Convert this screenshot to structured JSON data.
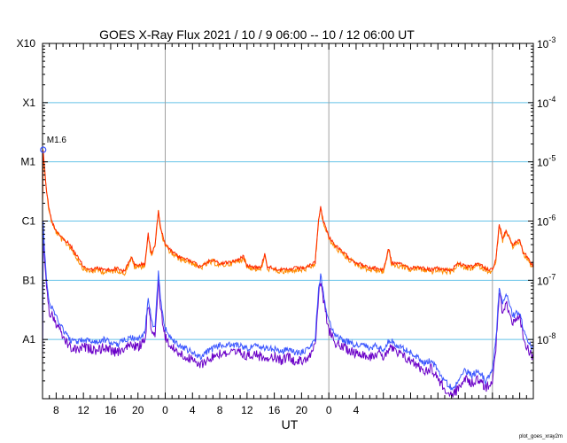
{
  "chart_data": {
    "type": "line",
    "title": "GOES X-Ray Flux   2021 / 10 /  9   06:00 -- 10 / 12   06:00   UT",
    "xlabel": "UT",
    "credit": "plot_goes_xray2m",
    "x_range_hours_ut": [
      6,
      78
    ],
    "x_ticks": [
      "8",
      "12",
      "16",
      "20",
      "0",
      "4",
      "8",
      "12",
      "16",
      "20",
      "0",
      "4"
    ],
    "y_scale": "log",
    "y_range": [
      1e-09,
      0.001
    ],
    "flare_class_labels": [
      "A1",
      "B1",
      "C1",
      "M1",
      "X1",
      "X10"
    ],
    "right_ticks": [
      {
        "base": "10",
        "exp": "-3"
      },
      {
        "base": "10",
        "exp": "-4"
      },
      {
        "base": "10",
        "exp": "-5"
      },
      {
        "base": "10",
        "exp": "-6"
      },
      {
        "base": "10",
        "exp": "-7"
      },
      {
        "base": "10",
        "exp": "-8"
      }
    ],
    "day_boundaries_hours": [
      24,
      48,
      72
    ],
    "grid": {
      "horizontal": true,
      "color": "#66c2e8"
    },
    "annotation": {
      "label": "M1.6",
      "hour": 6.1,
      "flux": 1.6e-05
    },
    "series": [
      {
        "name": "",
        "color": "#ff2a00",
        "color_secondary": "#ff8c00",
        "points": [
          [
            6.0,
            2e-06
          ],
          [
            6.1,
            1.6e-05
          ],
          [
            6.3,
            8e-06
          ],
          [
            6.6,
            3.2e-06
          ],
          [
            7.0,
            1.5e-06
          ],
          [
            7.5,
            9e-07
          ],
          [
            8.0,
            7e-07
          ],
          [
            9.0,
            5e-07
          ],
          [
            10.0,
            4e-07
          ],
          [
            11.0,
            2.6e-07
          ],
          [
            12.0,
            1.7e-07
          ],
          [
            13.0,
            1.5e-07
          ],
          [
            14.0,
            1.6e-07
          ],
          [
            15.0,
            1.5e-07
          ],
          [
            16.0,
            1.5e-07
          ],
          [
            17.0,
            1.6e-07
          ],
          [
            18.0,
            1.4e-07
          ],
          [
            19.0,
            2.5e-07
          ],
          [
            19.5,
            1.8e-07
          ],
          [
            20.0,
            1.8e-07
          ],
          [
            21.0,
            1.9e-07
          ],
          [
            21.5,
            6e-07
          ],
          [
            21.8,
            3.5e-07
          ],
          [
            22.0,
            3e-07
          ],
          [
            22.5,
            4e-07
          ],
          [
            23.0,
            1.5e-06
          ],
          [
            23.4,
            7e-07
          ],
          [
            24.0,
            4e-07
          ],
          [
            25.0,
            3e-07
          ],
          [
            26.0,
            2.5e-07
          ],
          [
            27.0,
            2.3e-07
          ],
          [
            28.0,
            2.1e-07
          ],
          [
            29.0,
            1.7e-07
          ],
          [
            30.0,
            2e-07
          ],
          [
            31.0,
            2.2e-07
          ],
          [
            32.0,
            1.9e-07
          ],
          [
            33.0,
            2e-07
          ],
          [
            34.0,
            2.1e-07
          ],
          [
            35.0,
            2.3e-07
          ],
          [
            35.5,
            2.6e-07
          ],
          [
            36.0,
            1.8e-07
          ],
          [
            37.0,
            1.7e-07
          ],
          [
            38.0,
            1.6e-07
          ],
          [
            38.6,
            2.8e-07
          ],
          [
            39.0,
            1.7e-07
          ],
          [
            40.0,
            1.6e-07
          ],
          [
            41.0,
            1.5e-07
          ],
          [
            42.0,
            1.5e-07
          ],
          [
            43.0,
            1.6e-07
          ],
          [
            44.0,
            1.6e-07
          ],
          [
            45.0,
            1.7e-07
          ],
          [
            46.0,
            2e-07
          ],
          [
            46.5,
            1.1e-06
          ],
          [
            46.8,
            1.7e-06
          ],
          [
            47.2,
            1e-06
          ],
          [
            48.0,
            5.5e-07
          ],
          [
            49.0,
            3.8e-07
          ],
          [
            50.0,
            3e-07
          ],
          [
            51.0,
            2.4e-07
          ],
          [
            52.0,
            2e-07
          ],
          [
            53.0,
            1.8e-07
          ],
          [
            54.0,
            1.6e-07
          ],
          [
            55.0,
            1.6e-07
          ],
          [
            56.0,
            1.5e-07
          ],
          [
            56.8,
            3.5e-07
          ],
          [
            57.2,
            2e-07
          ],
          [
            58.0,
            1.9e-07
          ],
          [
            59.0,
            1.8e-07
          ],
          [
            60.0,
            1.6e-07
          ],
          [
            61.0,
            1.7e-07
          ],
          [
            62.0,
            1.6e-07
          ],
          [
            63.0,
            1.5e-07
          ],
          [
            64.0,
            1.6e-07
          ],
          [
            65.0,
            1.5e-07
          ],
          [
            66.0,
            1.5e-07
          ],
          [
            67.0,
            2e-07
          ],
          [
            68.0,
            1.7e-07
          ],
          [
            69.0,
            1.7e-07
          ],
          [
            70.0,
            1.9e-07
          ],
          [
            71.0,
            1.6e-07
          ],
          [
            72.0,
            1.5e-07
          ],
          [
            72.5,
            2.2e-07
          ],
          [
            73.0,
            9e-07
          ],
          [
            73.5,
            5e-07
          ],
          [
            74.0,
            7e-07
          ],
          [
            75.0,
            4e-07
          ],
          [
            76.0,
            5e-07
          ],
          [
            76.5,
            3e-07
          ],
          [
            77.0,
            2.6e-07
          ],
          [
            77.5,
            2e-07
          ],
          [
            78.0,
            1.8e-07
          ]
        ]
      },
      {
        "name": "",
        "color": "#3a55ff",
        "color_secondary": "#6a00c8",
        "points": [
          [
            6.0,
            5e-09
          ],
          [
            6.1,
            1e-06
          ],
          [
            6.3,
            3.5e-07
          ],
          [
            6.6,
            1e-07
          ],
          [
            7.0,
            4e-08
          ],
          [
            8.0,
            2.5e-08
          ],
          [
            9.0,
            1.5e-08
          ],
          [
            10.0,
            1e-08
          ],
          [
            11.0,
            9e-09
          ],
          [
            12.0,
            1e-08
          ],
          [
            13.0,
            9.5e-09
          ],
          [
            14.0,
            9e-09
          ],
          [
            15.0,
            1e-08
          ],
          [
            16.0,
            9e-09
          ],
          [
            17.0,
            8e-09
          ],
          [
            18.0,
            1e-08
          ],
          [
            19.0,
            1.1e-08
          ],
          [
            20.0,
            1e-08
          ],
          [
            21.0,
            1.3e-08
          ],
          [
            21.5,
            5e-08
          ],
          [
            22.0,
            2e-08
          ],
          [
            22.5,
            1.5e-08
          ],
          [
            23.0,
            1.3e-07
          ],
          [
            23.4,
            4e-08
          ],
          [
            24.0,
            1.5e-08
          ],
          [
            25.0,
            1e-08
          ],
          [
            26.0,
            8e-09
          ],
          [
            27.0,
            7e-09
          ],
          [
            28.0,
            6e-09
          ],
          [
            29.0,
            5e-09
          ],
          [
            30.0,
            6e-09
          ],
          [
            31.0,
            7e-09
          ],
          [
            32.0,
            8e-09
          ],
          [
            33.0,
            8e-09
          ],
          [
            34.0,
            8e-09
          ],
          [
            35.0,
            8e-09
          ],
          [
            36.0,
            7e-09
          ],
          [
            37.0,
            8e-09
          ],
          [
            38.0,
            7e-09
          ],
          [
            39.0,
            7e-09
          ],
          [
            40.0,
            7e-09
          ],
          [
            41.0,
            6e-09
          ],
          [
            42.0,
            7e-09
          ],
          [
            43.0,
            6e-09
          ],
          [
            44.0,
            6e-09
          ],
          [
            45.0,
            7e-09
          ],
          [
            46.0,
            1e-08
          ],
          [
            46.5,
            8e-08
          ],
          [
            46.8,
            1.2e-07
          ],
          [
            47.2,
            6e-08
          ],
          [
            48.0,
            2e-08
          ],
          [
            49.0,
            1.2e-08
          ],
          [
            50.0,
            1e-08
          ],
          [
            51.0,
            9e-09
          ],
          [
            52.0,
            8e-09
          ],
          [
            53.0,
            8e-09
          ],
          [
            54.0,
            7e-09
          ],
          [
            55.0,
            8e-09
          ],
          [
            56.0,
            7e-09
          ],
          [
            57.0,
            1e-08
          ],
          [
            58.0,
            8e-09
          ],
          [
            59.0,
            7e-09
          ],
          [
            60.0,
            6e-09
          ],
          [
            61.0,
            5e-09
          ],
          [
            62.0,
            4e-09
          ],
          [
            63.0,
            4.5e-09
          ],
          [
            64.0,
            3e-09
          ],
          [
            65.0,
            2e-09
          ],
          [
            66.0,
            1.5e-09
          ],
          [
            67.0,
            2e-09
          ],
          [
            68.0,
            3e-09
          ],
          [
            69.0,
            2.5e-09
          ],
          [
            70.0,
            3e-09
          ],
          [
            71.0,
            2e-09
          ],
          [
            72.0,
            3e-09
          ],
          [
            72.5,
            1e-08
          ],
          [
            73.0,
            8e-08
          ],
          [
            73.5,
            4e-08
          ],
          [
            74.0,
            6e-08
          ],
          [
            75.0,
            2.5e-08
          ],
          [
            76.0,
            3e-08
          ],
          [
            76.5,
            1.5e-08
          ],
          [
            77.0,
            1e-08
          ],
          [
            77.5,
            8e-09
          ],
          [
            78.0,
            7e-09
          ]
        ]
      }
    ]
  }
}
